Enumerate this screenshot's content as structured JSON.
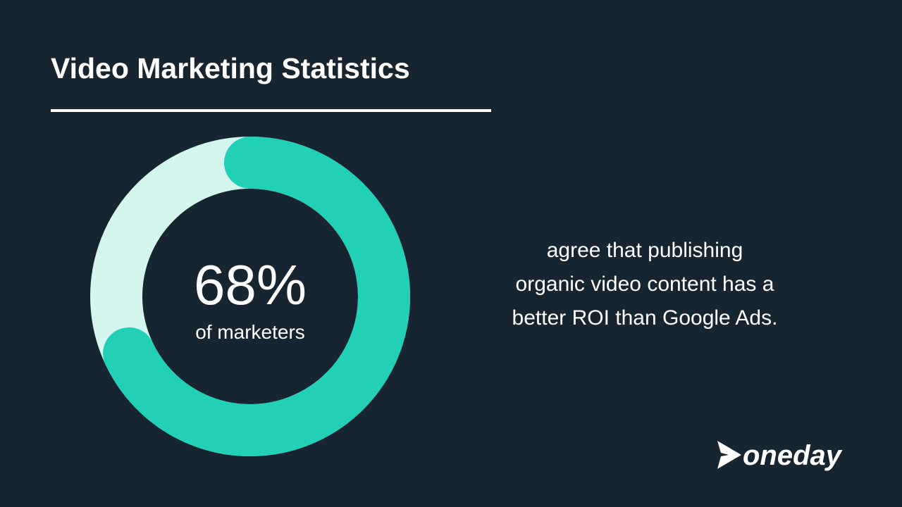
{
  "chart_data": {
    "type": "donut",
    "title": "Video Marketing Statistics",
    "values": [
      68
    ],
    "value_labels": [
      "68%"
    ],
    "total": 100,
    "subtitle": "of marketers",
    "annotation_lines": [
      "agree that publishing",
      "organic video content has a",
      "better ROI than Google Ads."
    ],
    "color": "#22d1b5",
    "track_color": "#d5f5ef"
  },
  "brand": "oneday"
}
